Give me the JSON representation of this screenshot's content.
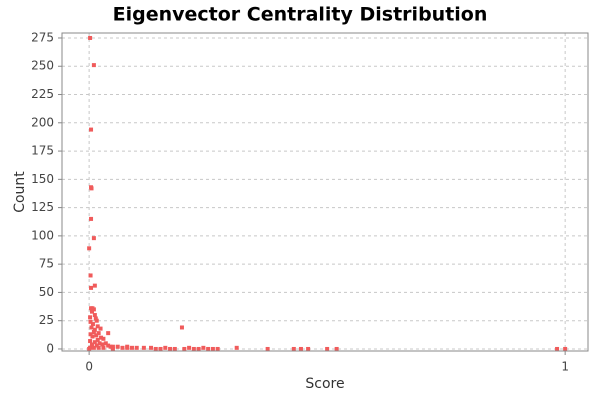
{
  "chart_data": {
    "type": "scatter",
    "title": "Eigenvector Centrality Distribution",
    "x_label": "Score",
    "y_label": "Count",
    "color": "#f05b5b",
    "grid": true,
    "xlim": [
      -0.057,
      1.048
    ],
    "ylim": [
      -1.8,
      279.4
    ],
    "xticks": [
      0,
      1
    ],
    "yticks": [
      0,
      25,
      50,
      75,
      100,
      125,
      150,
      175,
      200,
      225,
      250,
      275
    ],
    "x": [
      0.002,
      0.01,
      0.004,
      0.004,
      0.005,
      0.004,
      0.01,
      0.0,
      0.003,
      0.004,
      0.012,
      0.004,
      0.007,
      0.01,
      0.006,
      0.012,
      0.002,
      0.014,
      0.016,
      0.003,
      0.008,
      0.018,
      0.005,
      0.024,
      0.012,
      0.01,
      0.02,
      0.04,
      0.003,
      0.015,
      0.007,
      0.025,
      0.03,
      0.018,
      0.002,
      0.012,
      0.035,
      0.022,
      0.006,
      0.028,
      0.016,
      0.04,
      0.045,
      0.05,
      0.06,
      0.002,
      0.01,
      0.02,
      0.03,
      0.07,
      0.08,
      0.09,
      0.1,
      0.08,
      0.115,
      0.13,
      0.14,
      0.15,
      0.16,
      0.17,
      0.18,
      0.195,
      0.2,
      0.21,
      0.22,
      0.23,
      0.24,
      0.25,
      0.26,
      0.27,
      0.31,
      0.375,
      0.43,
      0.445,
      0.46,
      0.5,
      0.52,
      0.983,
      1.0,
      0.0,
      0.05
    ],
    "values": [
      275,
      251,
      194,
      143,
      142,
      115,
      98,
      89,
      65,
      54,
      56,
      36,
      36,
      35,
      33,
      30,
      28,
      27,
      25,
      24,
      22,
      20,
      19,
      18,
      17,
      15,
      14,
      14,
      13,
      12,
      11,
      10,
      9,
      8,
      7,
      6,
      5,
      5,
      4,
      4,
      3,
      3,
      2,
      2,
      2,
      1,
      1,
      1,
      1,
      1,
      1,
      1,
      1,
      2,
      1,
      1,
      0,
      0,
      1,
      0,
      0,
      19,
      0,
      1,
      0,
      0,
      1,
      0,
      0,
      0,
      1,
      0,
      0,
      0,
      0,
      0,
      0,
      0,
      0,
      0,
      0
    ]
  }
}
